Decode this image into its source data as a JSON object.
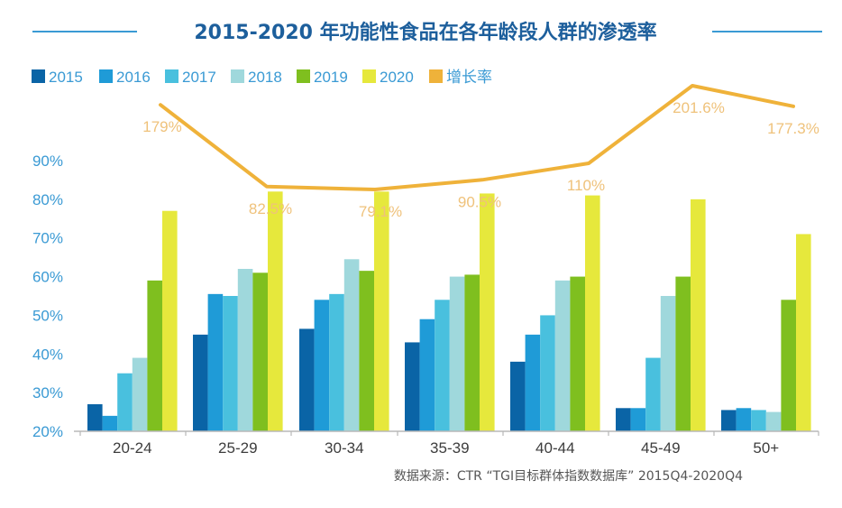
{
  "colors": {
    "title": "#1d5f9c",
    "title_rule": "#3a9ad4",
    "axis_text": "#3a9ad4",
    "growth_line": "#efb23a",
    "growth_label": "#efc27b"
  },
  "chart_data": {
    "type": "bar",
    "title": "2015-2020 年功能性食品在各年龄段人群的渗透率",
    "categories": [
      "20-24",
      "25-29",
      "30-34",
      "35-39",
      "40-44",
      "45-49",
      "50+"
    ],
    "ylim": [
      20,
      90
    ],
    "ytick_values": [
      20,
      30,
      40,
      50,
      60,
      70,
      80,
      90
    ],
    "yticks": [
      "20%",
      "30%",
      "40%",
      "50%",
      "60%",
      "70%",
      "80%",
      "90%"
    ],
    "series": [
      {
        "name": "2015",
        "color": "#0a64a6",
        "values": [
          27,
          45,
          46.5,
          43,
          38,
          26,
          25.5
        ]
      },
      {
        "name": "2016",
        "color": "#1f9bd7",
        "values": [
          24,
          55.5,
          54,
          49,
          45,
          26,
          26
        ]
      },
      {
        "name": "2017",
        "color": "#49c0de",
        "values": [
          35,
          55,
          55.5,
          54,
          50,
          39,
          25.5
        ]
      },
      {
        "name": "2018",
        "color": "#9fd8dc",
        "values": [
          39,
          62,
          64.5,
          60,
          59,
          55,
          25
        ]
      },
      {
        "name": "2019",
        "color": "#7fbf1f",
        "values": [
          59,
          61,
          61.5,
          60.5,
          60,
          60,
          54
        ]
      },
      {
        "name": "2020",
        "color": "#e6e83c",
        "values": [
          77,
          82,
          82,
          81.5,
          81,
          80,
          71
        ]
      }
    ],
    "growth": {
      "name": "增长率",
      "color": "#efb23a",
      "values": [
        179,
        82.5,
        79.1,
        90.5,
        110,
        201.6,
        177.3
      ],
      "labels": [
        "179%",
        "82.5%",
        "79.1%",
        "90.5%",
        "110%",
        "201.6%",
        "177.3%"
      ]
    },
    "source": "数据来源：CTR “TGI目标群体指数数据库” 2015Q4-2020Q4"
  }
}
